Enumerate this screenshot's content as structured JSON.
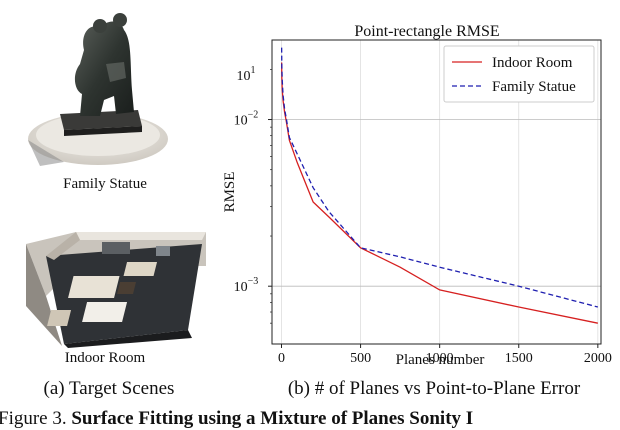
{
  "panels": {
    "statue_caption": "Family Statue",
    "room_caption": "Indoor Room",
    "left_label": "(a) Target Scenes",
    "right_label": "(b) # of Planes vs Point-to-Plane Error"
  },
  "figure_caption": {
    "prefix": "Figure 3.",
    "bold_text": "Surface Fitting using a Mixture of Planes Sonity I"
  },
  "chart_data": {
    "type": "line",
    "title": "Point-rectangle RMSE",
    "xlabel": "Planes number",
    "ylabel": "RMSE",
    "xlim": [
      -60,
      2020
    ],
    "ylim": [
      0.00045,
      0.03
    ],
    "yscale": "log",
    "grid": true,
    "legend_position": "top-right",
    "x_ticks": [
      0,
      500,
      1000,
      1500,
      2000
    ],
    "y_ticks": [
      {
        "value": 0.01,
        "base": "10",
        "exp": "−2"
      },
      {
        "value": 0.001,
        "base": "10",
        "exp": "−3"
      }
    ],
    "y_top_tick": {
      "base": "10",
      "exp": "1"
    },
    "series": [
      {
        "name": "Indoor Room",
        "color": "#d62020",
        "dash": "solid",
        "x": [
          1,
          2,
          5,
          10,
          20,
          30,
          50,
          100,
          200,
          300,
          500,
          750,
          1000,
          1500,
          2000
        ],
        "y": [
          0.022,
          0.018,
          0.015,
          0.013,
          0.011,
          0.0098,
          0.0075,
          0.0055,
          0.0032,
          0.0026,
          0.0017,
          0.0013,
          0.00095,
          0.00075,
          0.0006
        ]
      },
      {
        "name": "Family Statue",
        "color": "#1f1fb0",
        "dash": "dashed",
        "x": [
          1,
          2,
          5,
          10,
          20,
          30,
          50,
          100,
          200,
          300,
          500,
          750,
          1000,
          1500,
          2000
        ],
        "y": [
          0.027,
          0.021,
          0.017,
          0.014,
          0.0115,
          0.0102,
          0.0078,
          0.0062,
          0.0039,
          0.0028,
          0.0017,
          0.0015,
          0.0013,
          0.001,
          0.00075
        ]
      }
    ]
  }
}
